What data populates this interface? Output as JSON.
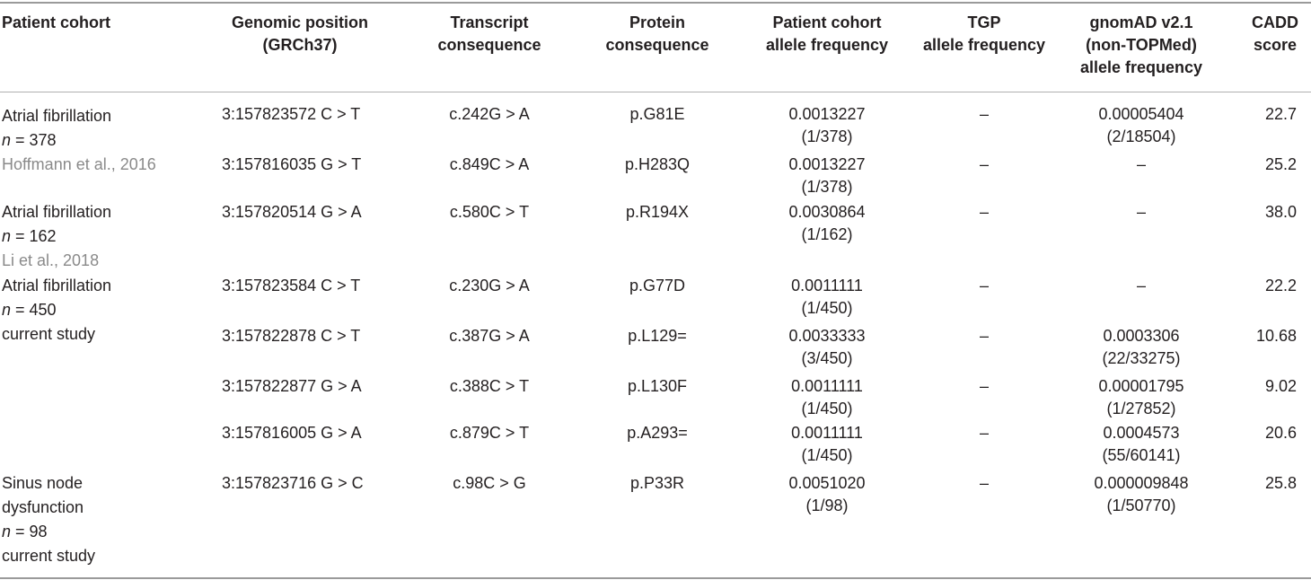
{
  "headers": {
    "cohort": "Patient cohort",
    "genomic_1": "Genomic position",
    "genomic_2": "(GRCh37)",
    "transcript_1": "Transcript",
    "transcript_2": "consequence",
    "protein_1": "Protein",
    "protein_2": "consequence",
    "pcaf_1": "Patient cohort",
    "pcaf_2": "allele frequency",
    "tgp_1": "TGP",
    "tgp_2": "allele frequency",
    "gnomad_1": "gnomAD v2.1",
    "gnomad_2": "(non-TOPMed)",
    "gnomad_3": "allele frequency",
    "cadd_1": "CADD",
    "cadd_2": "score"
  },
  "cohorts": [
    {
      "line1": "Atrial fibrillation",
      "n_label": "n",
      "n_value": " = 378",
      "ref": "Hoffmann et al., 2016"
    },
    {
      "line1": "Atrial fibrillation",
      "n_label": "n",
      "n_value": " = 162",
      "ref": "Li et al., 2018"
    },
    {
      "line1": "Atrial fibrillation",
      "n_label": "n",
      "n_value": " = 450",
      "ref": "current study"
    },
    {
      "line1": "Sinus node",
      "line2": "dysfunction",
      "n_label": "n",
      "n_value": " = 98",
      "ref": "current study"
    }
  ],
  "rows": [
    {
      "pos": "3:157823572 C > T",
      "tx": "c.242G > A",
      "prot": "p.G81E",
      "pcaf": "0.0013227",
      "pcaf_n": "(1/378)",
      "tgp": "–",
      "gnomad": "0.00005404",
      "gnomad_n": "(2/18504)",
      "cadd": "22.7"
    },
    {
      "pos": "3:157816035 G > T",
      "tx": "c.849C > A",
      "prot": "p.H283Q",
      "pcaf": "0.0013227",
      "pcaf_n": "(1/378)",
      "tgp": "–",
      "gnomad": "–",
      "gnomad_n": "",
      "cadd": "25.2"
    },
    {
      "pos": "3:157820514 G > A",
      "tx": "c.580C > T",
      "prot": "p.R194X",
      "pcaf": "0.0030864",
      "pcaf_n": "(1/162)",
      "tgp": "–",
      "gnomad": "–",
      "gnomad_n": "",
      "cadd": "38.0"
    },
    {
      "pos": "3:157823584 C > T",
      "tx": "c.230G > A",
      "prot": "p.G77D",
      "pcaf": "0.0011111",
      "pcaf_n": "(1/450)",
      "tgp": "–",
      "gnomad": "–",
      "gnomad_n": "",
      "cadd": "22.2"
    },
    {
      "pos": "3:157822878 C > T",
      "tx": "c.387G > A",
      "prot": "p.L129=",
      "pcaf": "0.0033333",
      "pcaf_n": "(3/450)",
      "tgp": "–",
      "gnomad": "0.0003306",
      "gnomad_n": "(22/33275)",
      "cadd": "10.68"
    },
    {
      "pos": "3:157822877 G > A",
      "tx": "c.388C > T",
      "prot": "p.L130F",
      "pcaf": "0.0011111",
      "pcaf_n": "(1/450)",
      "tgp": "–",
      "gnomad": "0.00001795",
      "gnomad_n": "(1/27852)",
      "cadd": "9.02"
    },
    {
      "pos": "3:157816005 G > A",
      "tx": "c.879C > T",
      "prot": "p.A293=",
      "pcaf": "0.0011111",
      "pcaf_n": "(1/450)",
      "tgp": "–",
      "gnomad": "0.0004573",
      "gnomad_n": "(55/60141)",
      "cadd": "20.6"
    },
    {
      "pos": "3:157823716 G > C",
      "tx": "c.98C > G",
      "prot": "p.P33R",
      "pcaf": "0.0051020",
      "pcaf_n": "(1/98)",
      "tgp": "–",
      "gnomad": "0.000009848",
      "gnomad_n": "(1/50770)",
      "cadd": "25.8"
    }
  ]
}
